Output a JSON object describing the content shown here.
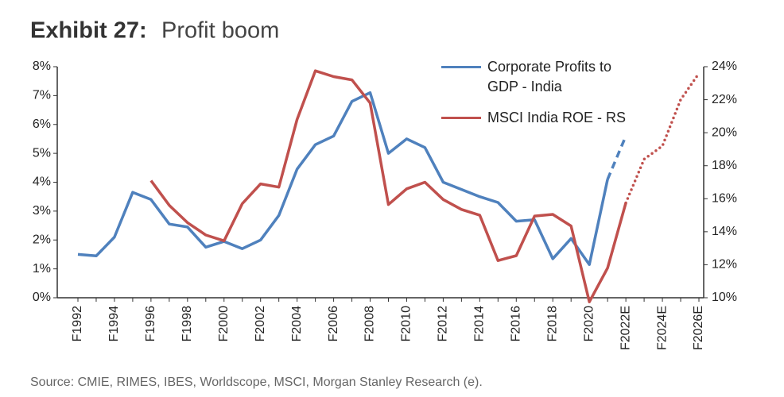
{
  "chart_data": {
    "type": "line",
    "title": "Exhibit 27:",
    "subtitle": "Profit boom",
    "source": "Source: CMIE, RIMES, IBES, Worldscope, MSCI, Morgan Stanley Research (e).",
    "categories": [
      "F1992",
      null,
      "F1994",
      null,
      "F1996",
      null,
      "F1998",
      null,
      "F2000",
      null,
      "F2002",
      null,
      "F2004",
      null,
      "F2006",
      null,
      "F2008",
      null,
      "F2010",
      null,
      "F2012",
      null,
      "F2014",
      null,
      "F2016",
      null,
      "F2018",
      null,
      "F2020",
      null,
      "F2022E",
      null,
      "F2024E",
      null,
      "F2026E"
    ],
    "series": [
      {
        "name": "Corporate Profits to GDP - India",
        "color": "#4f81bd",
        "axis": "y",
        "projection_style": "dashed",
        "projected_from": 29,
        "values": [
          1.5,
          1.45,
          2.1,
          3.65,
          3.4,
          2.55,
          2.45,
          1.75,
          1.95,
          1.7,
          2.0,
          2.85,
          4.45,
          5.3,
          5.6,
          6.8,
          7.1,
          5.0,
          5.5,
          5.2,
          4.0,
          3.75,
          3.5,
          3.3,
          2.65,
          2.7,
          1.35,
          2.05,
          1.15,
          4.1,
          5.6,
          null,
          null,
          null,
          null
        ]
      },
      {
        "name": "MSCI India ROE - RS",
        "color": "#c0504d",
        "axis": "y2",
        "projection_style": "dotted",
        "projected_from": 30,
        "values": [
          null,
          null,
          null,
          null,
          17.1,
          15.6,
          14.55,
          13.8,
          13.45,
          15.7,
          16.9,
          16.7,
          20.8,
          23.75,
          23.4,
          23.2,
          21.8,
          15.65,
          16.6,
          17.0,
          15.95,
          15.35,
          15.0,
          12.25,
          12.55,
          14.95,
          15.05,
          14.35,
          9.75,
          11.8,
          15.75,
          18.4,
          19.2,
          22.0,
          23.6
        ]
      }
    ],
    "ylim": [
      0,
      8
    ],
    "yticks": [
      {
        "value": 0,
        "label": "0%"
      },
      {
        "value": 1,
        "label": "1%"
      },
      {
        "value": 2,
        "label": "2%"
      },
      {
        "value": 3,
        "label": "3%"
      },
      {
        "value": 4,
        "label": "4%"
      },
      {
        "value": 5,
        "label": "5%"
      },
      {
        "value": 6,
        "label": "6%"
      },
      {
        "value": 7,
        "label": "7%"
      },
      {
        "value": 8,
        "label": "8%"
      }
    ],
    "y2lim": [
      10,
      24
    ],
    "y2ticks": [
      {
        "value": 10,
        "label": "10%"
      },
      {
        "value": 12,
        "label": "12%"
      },
      {
        "value": 14,
        "label": "14%"
      },
      {
        "value": 16,
        "label": "16%"
      },
      {
        "value": 18,
        "label": "18%"
      },
      {
        "value": 20,
        "label": "20%"
      },
      {
        "value": 22,
        "label": "22%"
      },
      {
        "value": 24,
        "label": "24%"
      }
    ],
    "grid": false,
    "legend": "top-right"
  }
}
